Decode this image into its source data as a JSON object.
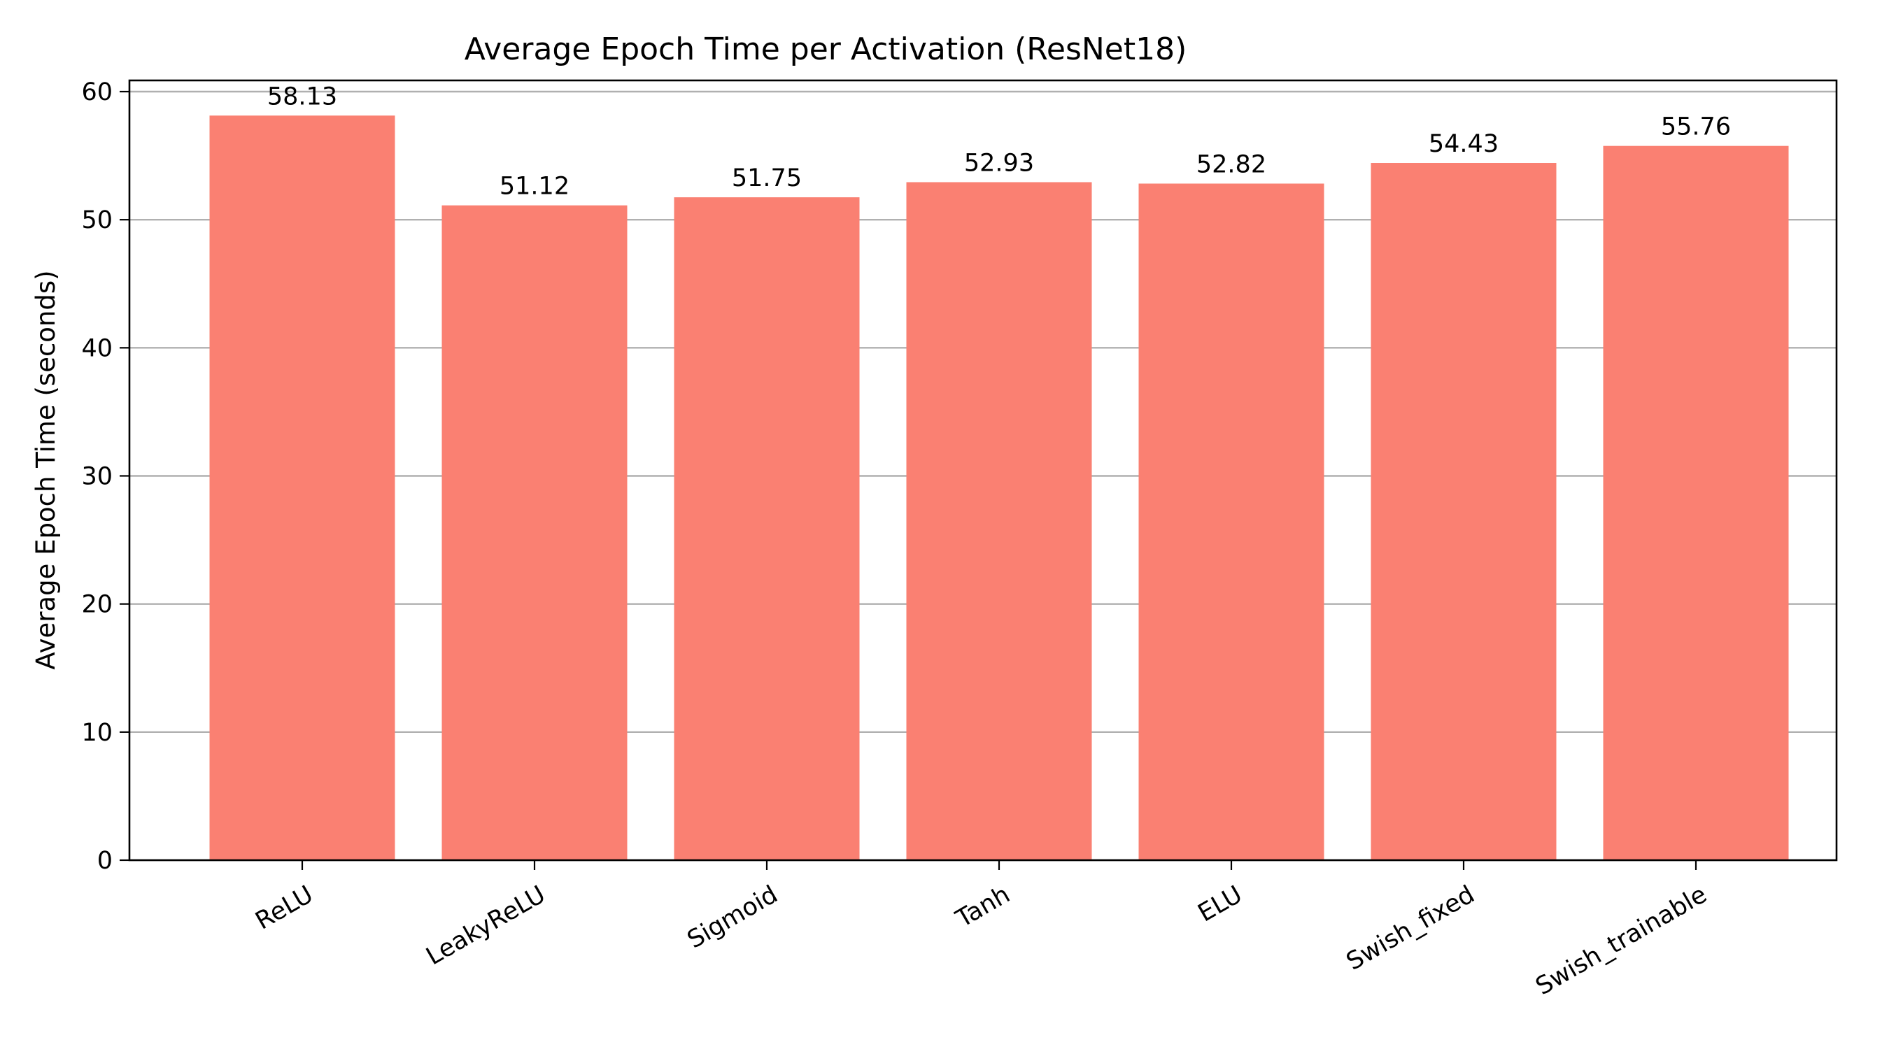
{
  "chart_data": {
    "type": "bar",
    "title": "Average Epoch Time per Activation (ResNet18)",
    "xlabel": "",
    "ylabel": "Average Epoch Time (seconds)",
    "categories": [
      "ReLU",
      "LeakyReLU",
      "Sigmoid",
      "Tanh",
      "ELU",
      "Swish_fixed",
      "Swish_trainable"
    ],
    "values": [
      58.13,
      51.12,
      51.75,
      52.93,
      52.82,
      54.43,
      55.76
    ],
    "value_labels": [
      "58.13",
      "51.12",
      "51.75",
      "52.93",
      "52.82",
      "54.43",
      "55.76"
    ],
    "ylim": [
      0,
      60
    ],
    "yticks": [
      0,
      10,
      20,
      30,
      40,
      50,
      60
    ],
    "ytick_labels": [
      "0",
      "10",
      "20",
      "30",
      "40",
      "50",
      "60"
    ],
    "grid": "horizontal",
    "legend": "none",
    "x_tick_rotation": "30 degrees",
    "bar_color": "#fa8072"
  }
}
